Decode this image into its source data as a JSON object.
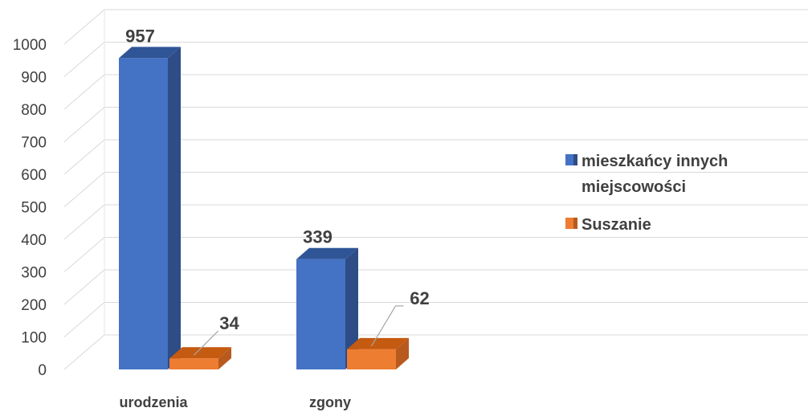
{
  "chart_data": {
    "type": "bar",
    "title": "",
    "xlabel": "",
    "ylabel": "",
    "categories": [
      "urodzenia",
      "zgony"
    ],
    "series": [
      {
        "name": "mieszkańcy innych miejscowości",
        "name_lines": [
          "mieszkańcy innych",
          "miejscowości"
        ],
        "values": [
          957,
          339
        ],
        "color": "#4472C4",
        "top_color": "#2F5597",
        "side_color": "#2E4C86"
      },
      {
        "name": "Suszanie",
        "name_lines": [
          "Suszanie"
        ],
        "values": [
          34,
          62
        ],
        "color": "#ED7D31",
        "top_color": "#C55A11",
        "side_color": "#B85A1E"
      }
    ],
    "ylim": [
      0,
      1000
    ],
    "yticks": [
      0,
      100,
      200,
      300,
      400,
      500,
      600,
      700,
      800,
      900,
      1000
    ],
    "grid": true,
    "legend_position": "right",
    "style": "3d-column"
  }
}
